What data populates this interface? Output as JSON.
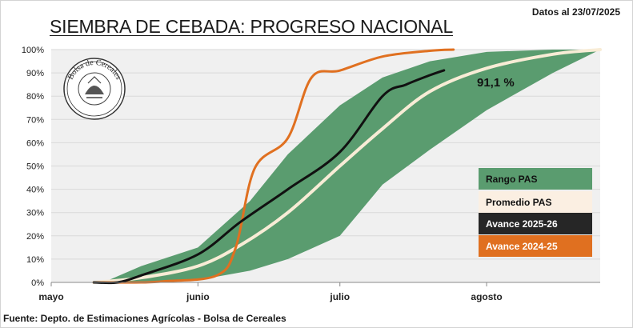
{
  "header": {
    "title": "SIEMBRA DE CEBADA: PROGRESO NACIONAL",
    "date": "Datos al 23/07/2025"
  },
  "footer": {
    "source": "Fuente: Depto. de Estimaciones Agrícolas - Bolsa de Cereales"
  },
  "logo": {
    "text": "Bolsa de Cereales"
  },
  "chart_data": {
    "type": "area",
    "title": "SIEMBRA DE CEBADA: PROGRESO NACIONAL",
    "xlabel": "",
    "ylabel": "",
    "x_ticks": [
      "mayo",
      "junio",
      "julio",
      "agosto"
    ],
    "y_ticks": [
      "0%",
      "10%",
      "20%",
      "30%",
      "40%",
      "50%",
      "60%",
      "70%",
      "80%",
      "90%",
      "100%"
    ],
    "ylim": [
      0,
      100
    ],
    "xlim": [
      "05-01",
      "08-25"
    ],
    "grid": true,
    "legend_position": "right",
    "annotation": "91,1  %",
    "series": [
      {
        "name": "Rango PAS",
        "kind": "band",
        "color": "#5a9c6f",
        "x": [
          "05-12",
          "05-20",
          "06-01",
          "06-12",
          "06-20",
          "07-01",
          "07-10",
          "07-20",
          "08-01",
          "08-15",
          "08-25"
        ],
        "upper": [
          0,
          7,
          15,
          35,
          55,
          76,
          88,
          95,
          99,
          100,
          100
        ],
        "lower": [
          0,
          0,
          1,
          5,
          10,
          20,
          42,
          57,
          74,
          90,
          100
        ]
      },
      {
        "name": "Promedio PAS",
        "kind": "line",
        "color": "#f8ecd6",
        "x": [
          "05-10",
          "05-20",
          "06-01",
          "06-10",
          "06-20",
          "07-01",
          "07-10",
          "07-20",
          "08-01",
          "08-15",
          "08-25"
        ],
        "values": [
          0,
          2,
          7,
          16,
          30,
          50,
          66,
          82,
          92,
          98,
          100
        ]
      },
      {
        "name": "Avance 2025-26",
        "kind": "line",
        "color": "#111111",
        "x": [
          "05-10",
          "05-15",
          "05-20",
          "06-01",
          "06-10",
          "06-20",
          "07-01",
          "07-10",
          "07-15",
          "07-20",
          "07-23"
        ],
        "values": [
          0,
          0,
          3,
          12,
          26,
          40,
          56,
          80,
          85,
          89,
          91.1
        ]
      },
      {
        "name": "Avance 2024-25",
        "kind": "line",
        "color": "#e07020",
        "x": [
          "05-10",
          "05-20",
          "05-25",
          "06-05",
          "06-09",
          "06-13",
          "06-20",
          "06-25",
          "07-01",
          "07-10",
          "07-20",
          "07-25"
        ],
        "values": [
          0,
          0,
          0.5,
          3,
          15,
          49,
          62,
          88,
          91,
          97,
          99.5,
          100
        ]
      }
    ]
  }
}
